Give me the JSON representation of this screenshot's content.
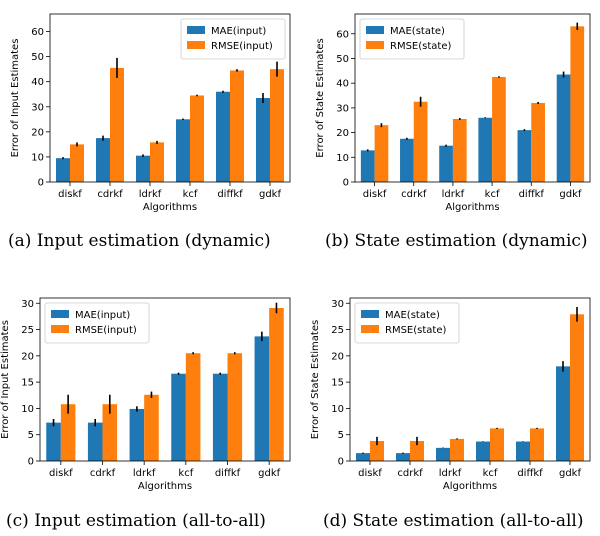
{
  "colors": {
    "series1": "#1f77b4",
    "series2": "#ff7f0e",
    "error": "#000000"
  },
  "chart_data": [
    {
      "type": "bar",
      "caption": "(a) Input estimation (dynamic)",
      "categories": [
        "diskf",
        "cdrkf",
        "ldrkf",
        "kcf",
        "diffkf",
        "gdkf"
      ],
      "series": [
        {
          "name": "MAE(input)",
          "values": [
            9.5,
            17.5,
            10.5,
            25.0,
            36.0,
            33.5
          ],
          "errors": [
            0.4,
            1.0,
            0.5,
            0.3,
            0.4,
            2.0
          ]
        },
        {
          "name": "RMSE(input)",
          "values": [
            15.0,
            45.5,
            15.8,
            34.5,
            44.5,
            45.0
          ],
          "errors": [
            0.8,
            4.0,
            0.6,
            0.3,
            0.5,
            3.0
          ]
        }
      ],
      "xlabel": "Algorithms",
      "ylabel": "Error of Input Estimates",
      "ylim": [
        0,
        67
      ],
      "yticks": [
        0,
        10,
        20,
        30,
        40,
        50,
        60
      ],
      "legend": "top-right"
    },
    {
      "type": "bar",
      "caption": "(b) State estimation (dynamic)",
      "categories": [
        "diskf",
        "cdrkf",
        "ldrkf",
        "kcf",
        "diffkf",
        "gdkf"
      ],
      "series": [
        {
          "name": "MAE(state)",
          "values": [
            12.8,
            17.5,
            14.7,
            26.0,
            21.0,
            43.5
          ],
          "errors": [
            0.4,
            0.4,
            0.4,
            0.2,
            0.4,
            1.2
          ]
        },
        {
          "name": "RMSE(state)",
          "values": [
            23.0,
            32.5,
            25.5,
            42.5,
            32.0,
            63.0
          ],
          "errors": [
            0.8,
            2.0,
            0.4,
            0.3,
            0.4,
            1.5
          ]
        }
      ],
      "xlabel": "Algorithms",
      "ylabel": "Error of State Estimates",
      "ylim": [
        0,
        68
      ],
      "yticks": [
        0,
        10,
        20,
        30,
        40,
        50,
        60
      ],
      "legend": "top-left"
    },
    {
      "type": "bar",
      "caption": "(c) Input estimation (all-to-all)",
      "categories": [
        "diskf",
        "cdrkf",
        "ldrkf",
        "kcf",
        "diffkf",
        "gdkf"
      ],
      "series": [
        {
          "name": "MAE(input)",
          "values": [
            7.3,
            7.3,
            9.9,
            16.6,
            16.6,
            23.7
          ],
          "errors": [
            0.7,
            0.7,
            0.5,
            0.2,
            0.2,
            0.9
          ]
        },
        {
          "name": "RMSE(input)",
          "values": [
            10.8,
            10.8,
            12.6,
            20.5,
            20.5,
            29.1
          ],
          "errors": [
            1.8,
            1.8,
            0.6,
            0.2,
            0.2,
            1.0
          ]
        }
      ],
      "xlabel": "Algorithms",
      "ylabel": "Error of Input Estimates",
      "ylim": [
        0,
        31
      ],
      "yticks": [
        0,
        5,
        10,
        15,
        20,
        25,
        30
      ],
      "legend": "top-left"
    },
    {
      "type": "bar",
      "caption": "(d) State estimation (all-to-all)",
      "categories": [
        "diskf",
        "cdrkf",
        "ldrkf",
        "kcf",
        "diffkf",
        "gdkf"
      ],
      "series": [
        {
          "name": "MAE(state)",
          "values": [
            1.5,
            1.5,
            2.5,
            3.7,
            3.7,
            18.0
          ],
          "errors": [
            0.1,
            0.1,
            0.05,
            0.05,
            0.05,
            1.0
          ]
        },
        {
          "name": "RMSE(state)",
          "values": [
            3.8,
            3.8,
            4.2,
            6.2,
            6.2,
            27.9
          ],
          "errors": [
            0.8,
            0.8,
            0.1,
            0.1,
            0.1,
            1.4
          ]
        }
      ],
      "xlabel": "Algorithms",
      "ylabel": "Error of State Estimates",
      "ylim": [
        0,
        31
      ],
      "yticks": [
        0,
        5,
        10,
        15,
        20,
        25,
        30
      ],
      "legend": "top-left"
    }
  ]
}
